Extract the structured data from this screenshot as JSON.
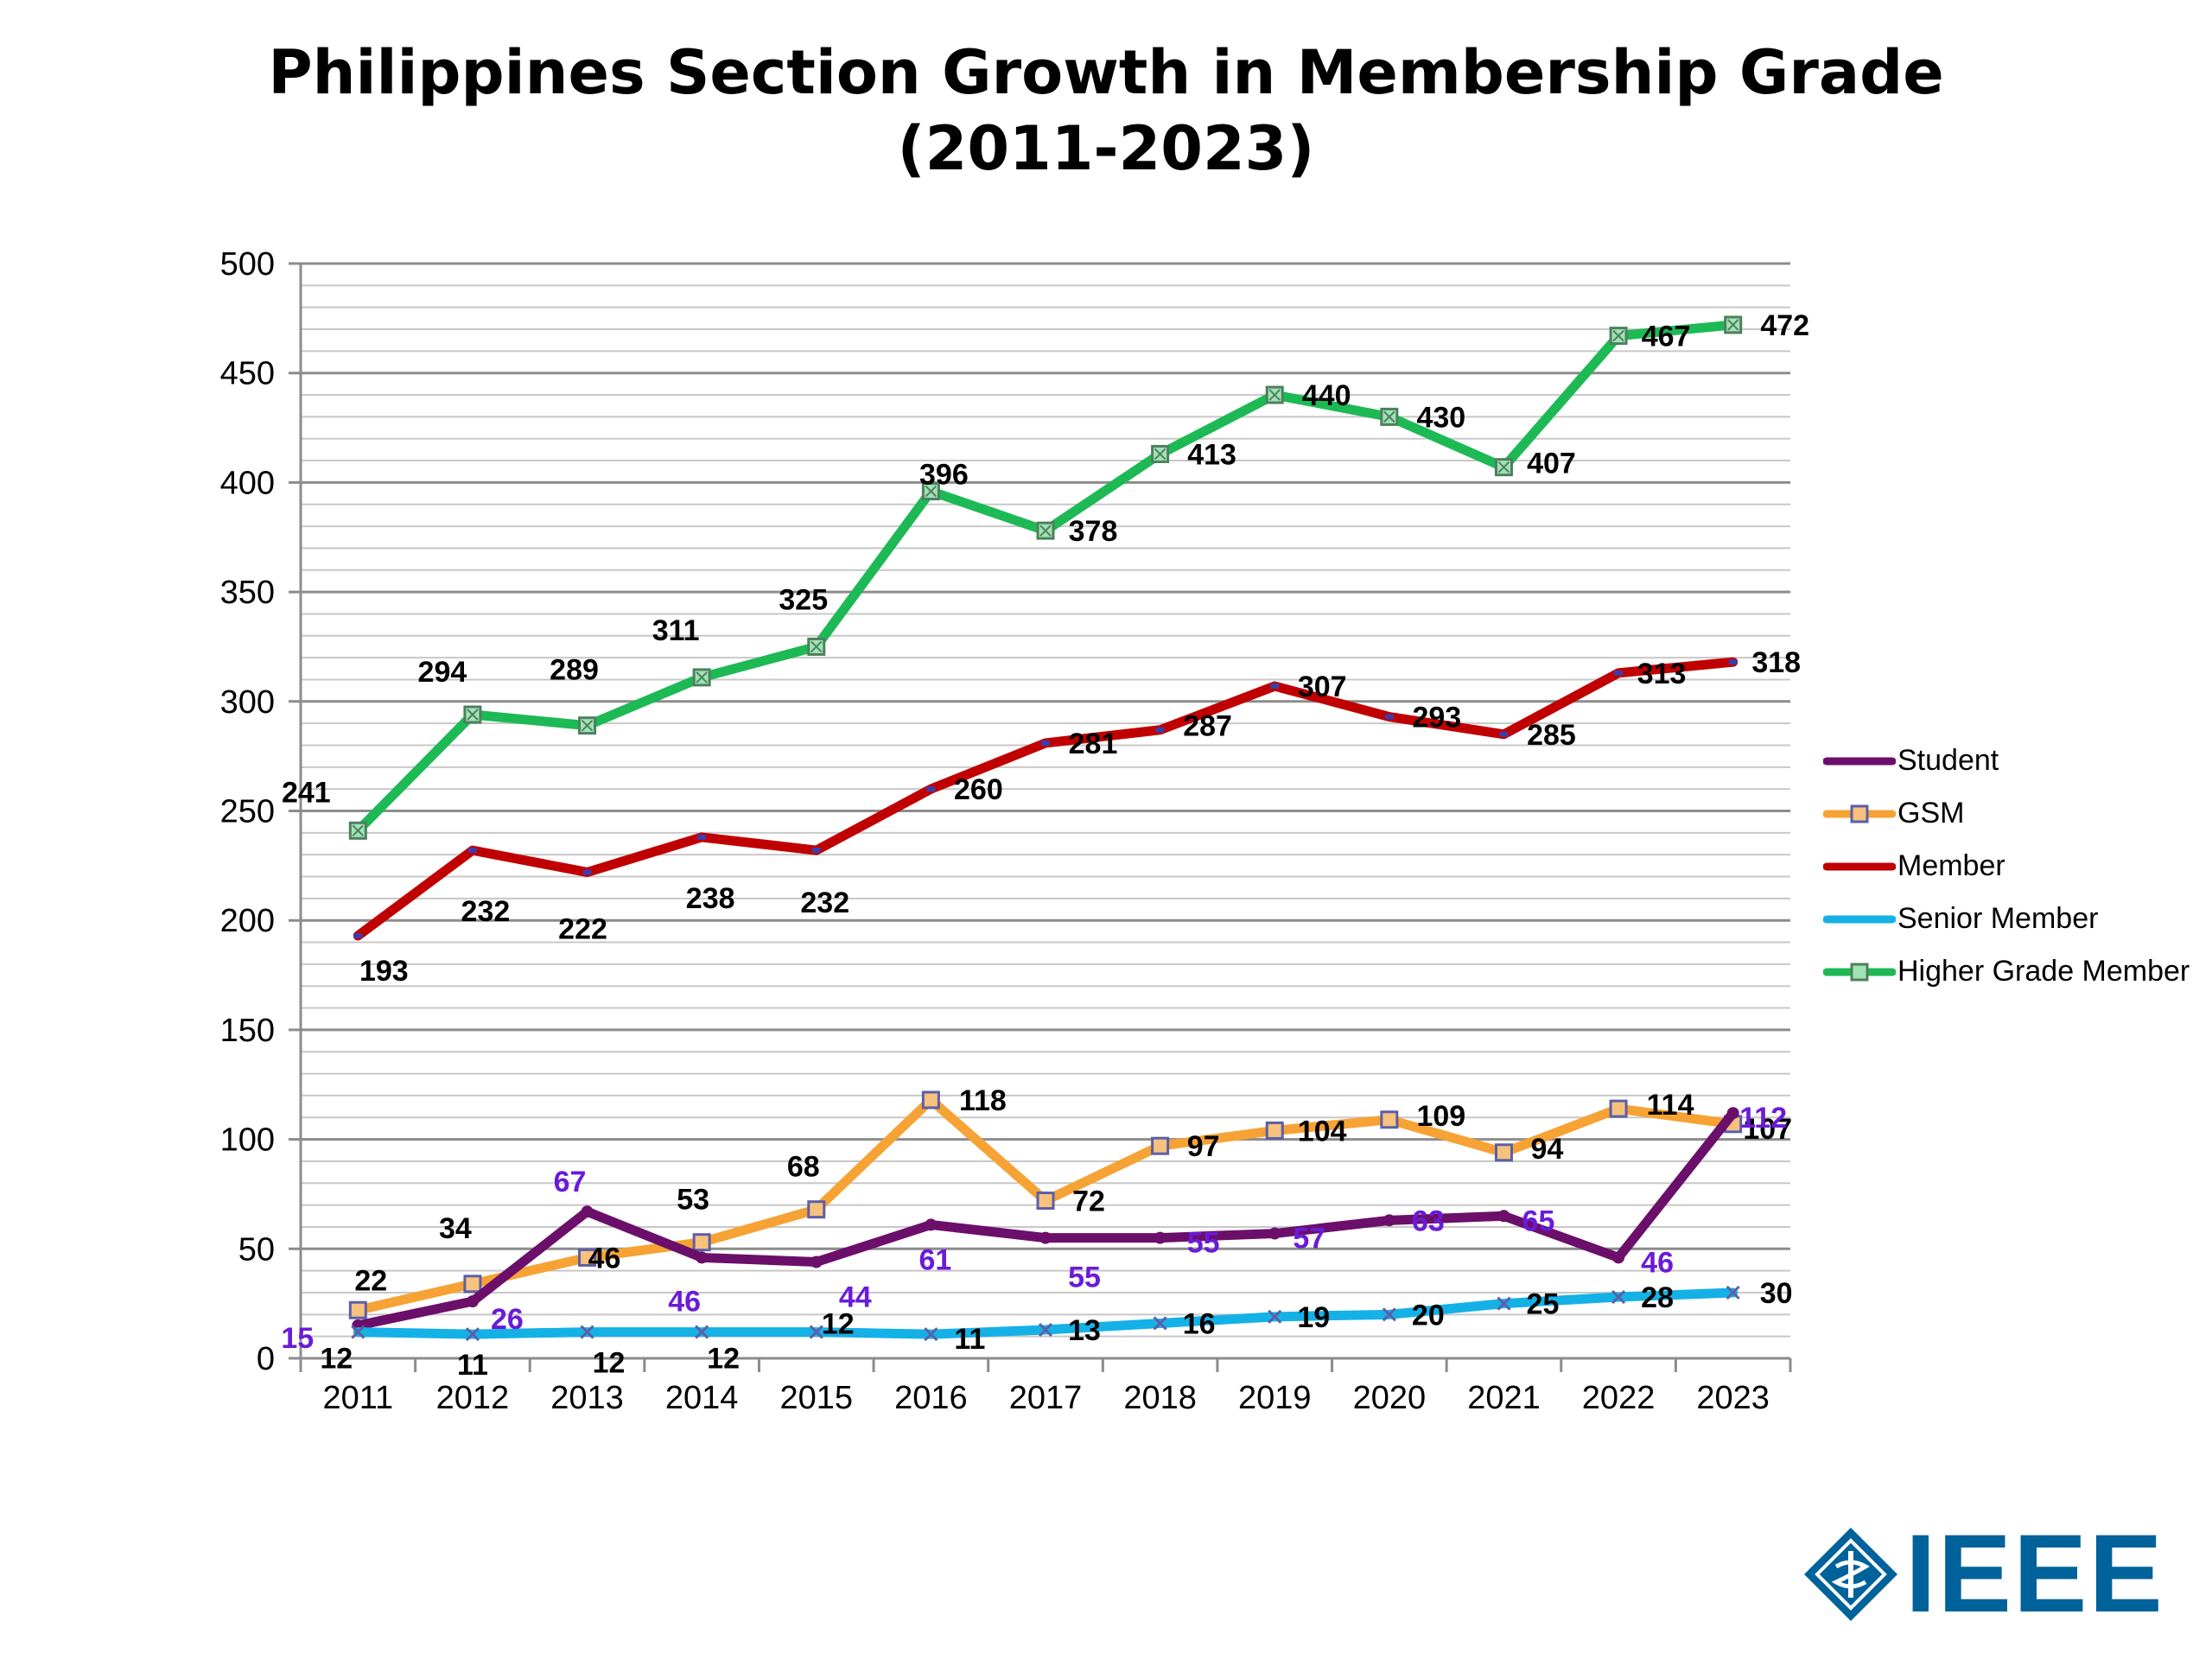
{
  "logo_text": "IEEE",
  "chart_data": {
    "type": "line",
    "title": [
      "Philippines Section Growth in Membership Grade",
      "(2011-2023)"
    ],
    "xlabel": "",
    "ylabel": "",
    "ylim": [
      0,
      500
    ],
    "y_ticks": [
      0,
      50,
      100,
      150,
      200,
      250,
      300,
      350,
      400,
      450,
      500
    ],
    "minor_grid_step": 10,
    "grid": true,
    "legend_position": "right",
    "categories": [
      "2011",
      "2012",
      "2013",
      "2014",
      "2015",
      "2016",
      "2017",
      "2018",
      "2019",
      "2020",
      "2021",
      "2022",
      "2023"
    ],
    "series": [
      {
        "name": "Student",
        "color": "#6B0F6B",
        "label_color": "#6A1BD8",
        "marker": "dot",
        "values": [
          15,
          26,
          67,
          46,
          44,
          61,
          55,
          55,
          57,
          63,
          65,
          46,
          112
        ]
      },
      {
        "name": "GSM",
        "color": "#F7A234",
        "label_color": "#000000",
        "marker": "square",
        "values": [
          22,
          34,
          46,
          53,
          68,
          118,
          72,
          97,
          104,
          109,
          94,
          114,
          107
        ]
      },
      {
        "name": "Member",
        "color": "#C00000",
        "label_color": "#000000",
        "marker": "dash",
        "values": [
          193,
          232,
          222,
          238,
          232,
          260,
          281,
          287,
          307,
          293,
          285,
          313,
          318
        ]
      },
      {
        "name": "Senior Member",
        "color": "#14B1E7",
        "label_color": "#000000",
        "marker": "x",
        "values": [
          12,
          11,
          12,
          12,
          12,
          11,
          13,
          16,
          19,
          20,
          25,
          28,
          30
        ]
      },
      {
        "name": "Higher Grade Member",
        "color": "#1DB954",
        "label_color": "#000000",
        "marker": "boxx",
        "values": [
          241,
          294,
          289,
          311,
          325,
          396,
          378,
          413,
          440,
          430,
          407,
          467,
          472
        ]
      }
    ]
  }
}
